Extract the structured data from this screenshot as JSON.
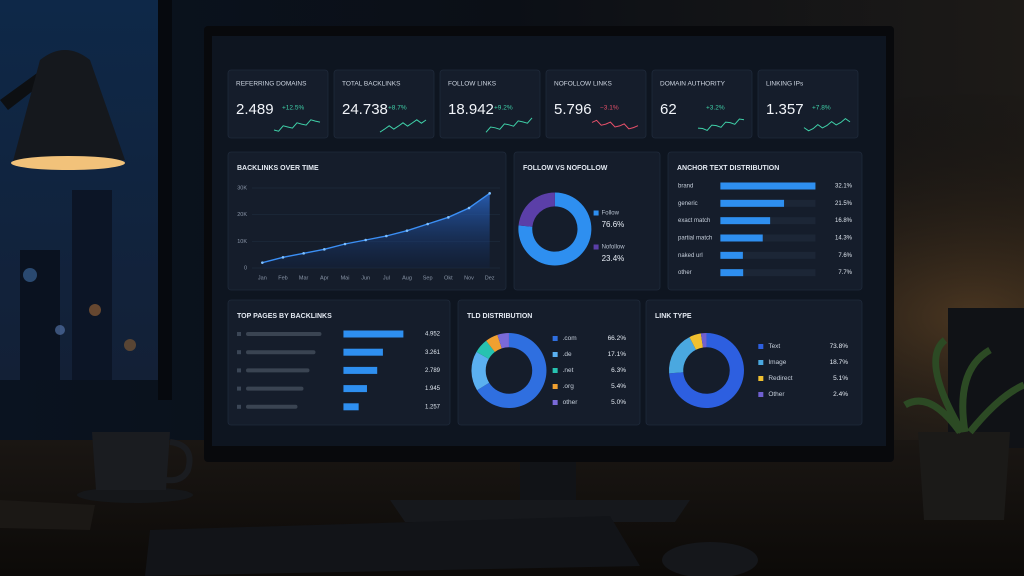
{
  "kpis": [
    {
      "label": "REFERRING DOMAINS",
      "value": "2.489",
      "change": "+12.5%",
      "change_color": "#3fd0a8"
    },
    {
      "label": "TOTAL BACKLINKS",
      "value": "24.738",
      "change": "+8.7%",
      "change_color": "#3fd0a8"
    },
    {
      "label": "FOLLOW LINKS",
      "value": "18.942",
      "change": "+9.2%",
      "change_color": "#3fd0a8"
    },
    {
      "label": "NOFOLLOW LINKS",
      "value": "5.796",
      "change": "−3.1%",
      "change_color": "#e8506a"
    },
    {
      "label": "DOMAIN AUTHORITY",
      "value": "62",
      "change": "+3.2%",
      "change_color": "#3fd0a8"
    },
    {
      "label": "LINKING IPs",
      "value": "1.357",
      "change": "+7.8%",
      "change_color": "#3fd0a8"
    }
  ],
  "chart_data": [
    {
      "type": "line",
      "title": "BACKLINKS OVER TIME",
      "categories": [
        "Jan",
        "Feb",
        "Mar",
        "Apr",
        "Mai",
        "Jun",
        "Jul",
        "Aug",
        "Sep",
        "Okt",
        "Nov",
        "Dez"
      ],
      "values": [
        2000,
        4000,
        5500,
        7000,
        9000,
        10500,
        12000,
        14000,
        16500,
        19000,
        22500,
        28000
      ],
      "color": "#3b8ff5",
      "ylim": [
        0,
        30000
      ],
      "yticks": [
        0,
        {
          "value": 10000,
          "label": "10K"
        },
        {
          "value": 20000,
          "label": "20K"
        },
        {
          "value": 30000,
          "label": "30K"
        }
      ]
    },
    {
      "type": "pie",
      "title": "FOLLOW VS NOFOLLOW",
      "categories": [
        "Follow",
        "Nofollow"
      ],
      "values": [
        76.6,
        23.4
      ],
      "value_labels": [
        "76.6%",
        "23.4%"
      ],
      "colors": [
        "#2e8ff0",
        "#5b3fa8"
      ]
    },
    {
      "type": "bar",
      "title": "ANCHOR TEXT DISTRIBUTION",
      "categories": [
        "brand",
        "generic",
        "exact match",
        "partial match",
        "naked url",
        "other"
      ],
      "values": [
        32.1,
        21.5,
        16.8,
        14.3,
        7.6,
        7.7
      ],
      "value_labels": [
        "32.1%",
        "21.5%",
        "16.8%",
        "14.3%",
        "7.6%",
        "7.7%"
      ],
      "color": "#2e8ff0"
    },
    {
      "type": "bar",
      "title": "TOP PAGES BY BACKLINKS",
      "categories": [
        null,
        null,
        null,
        null,
        null
      ],
      "values": [
        4952,
        3261,
        2789,
        1945,
        1257
      ],
      "value_labels": [
        "4.952",
        "3.261",
        "2.789",
        "1.945",
        "1.257"
      ],
      "color": "#2e8ff0"
    },
    {
      "type": "pie",
      "title": "TLD DISTRIBUTION",
      "categories": [
        ".com",
        ".de",
        ".net",
        ".org",
        "other"
      ],
      "values": [
        66.2,
        17.1,
        6.3,
        5.4,
        5.0
      ],
      "value_labels": [
        "66.2%",
        "17.1%",
        "6.3%",
        "5.4%",
        "5.0%"
      ],
      "colors": [
        "#2f6fe0",
        "#5bb0f0",
        "#27c2b0",
        "#f0a030",
        "#7a6ad8"
      ]
    },
    {
      "type": "pie",
      "title": "LINK TYPE",
      "categories": [
        "Text",
        "Image",
        "Redirect",
        "Other"
      ],
      "values": [
        73.8,
        18.7,
        5.1,
        2.4
      ],
      "value_labels": [
        "73.8%",
        "18.7%",
        "5.1%",
        "2.4%"
      ],
      "colors": [
        "#2d5fe0",
        "#4aa8e0",
        "#f0c030",
        "#7060d0"
      ]
    }
  ]
}
